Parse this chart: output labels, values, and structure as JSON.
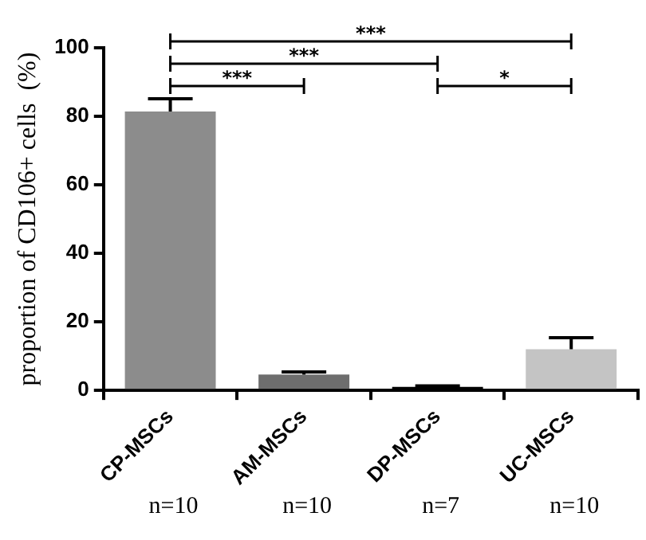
{
  "chart_data": {
    "type": "bar",
    "ylabel": "proportion of CD106+ cells  (%)",
    "categories": [
      "CP-MSCs",
      "AM-MSCs",
      "DP-MSCs",
      "UC-MSCs"
    ],
    "values": [
      81.4,
      4.6,
      1.0,
      12.0
    ],
    "errors": [
      [
        81.4,
        85.1
      ],
      [
        4.6,
        5.4
      ],
      [
        1.0,
        1.3
      ],
      [
        12.0,
        15.4
      ]
    ],
    "colors": [
      "#8c8c8c",
      "#6e6e6e",
      "#000000",
      "#c4c4c4"
    ],
    "ylim": [
      0,
      100
    ],
    "yticks": [
      0,
      20,
      40,
      60,
      80,
      100
    ],
    "grid": false,
    "legend": false,
    "annotations": [
      "***",
      "***",
      "***",
      "*",
      "n=10",
      "n=10",
      "n=7",
      "n=10"
    ]
  }
}
